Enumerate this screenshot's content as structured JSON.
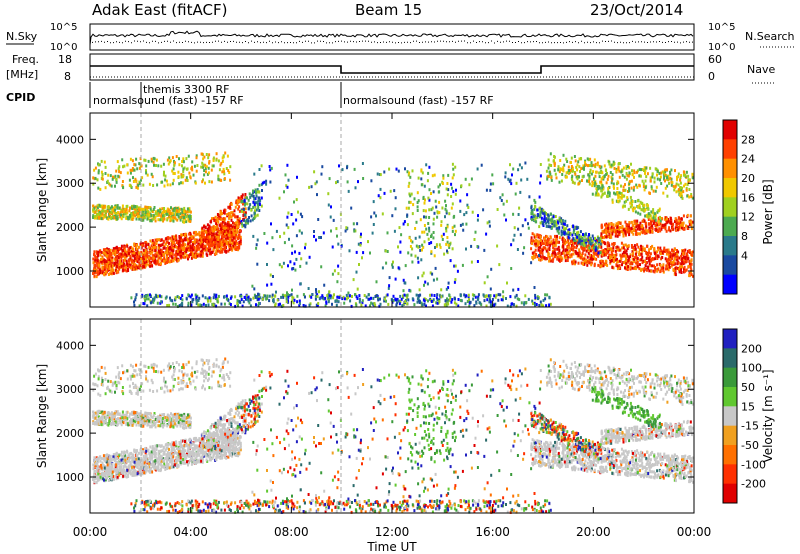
{
  "header": {
    "station": "Adak East (fitACF)",
    "beam": "Beam 15",
    "date": "23/Oct/2014"
  },
  "top_panels": {
    "nsky_label": "N.Sky",
    "nsearch_label": "N.Search",
    "nsky_ticks": [
      "10^5",
      "10^0"
    ],
    "nsearch_ticks": [
      "10^5",
      "10^0"
    ],
    "freq_label": "Freq.",
    "freq_unit": "[MHz]",
    "freq_ticks": [
      "18",
      "8"
    ],
    "nave_label": "Nave",
    "nave_ticks": [
      "60",
      "0"
    ],
    "cpid_label": "CPID",
    "cpid_segments": [
      {
        "text": "normalsound (fast) -157 RF",
        "start": "00:00",
        "end": "10:00"
      },
      {
        "text": "themis 3300 RF",
        "start": "02:00",
        "end": "02:00"
      },
      {
        "text": "normalsound (fast) -157 RF",
        "start": "10:00",
        "end": "24:00"
      }
    ]
  },
  "chart_data": [
    {
      "type": "heatmap",
      "title": "",
      "ylabel": "Slant Range [km]",
      "xlabel": "",
      "ylim": [
        180,
        4600
      ],
      "yticks": [
        "1000",
        "2000",
        "3000",
        "4000"
      ],
      "xticks": [
        "00:00",
        "04:00",
        "08:00",
        "12:00",
        "16:00",
        "20:00",
        "00:00"
      ],
      "colorbar": {
        "label": "Power [dB]",
        "ticks": [
          "28",
          "24",
          "20",
          "16",
          "12",
          "8",
          "4"
        ],
        "colors": [
          "#e00000",
          "#ff4000",
          "#ff9000",
          "#f0c800",
          "#a0d020",
          "#4caa50",
          "#2a7a8a",
          "#1a4aa0",
          "#0000ff"
        ]
      }
    },
    {
      "type": "heatmap",
      "title": "",
      "ylabel": "Slant Range [km]",
      "xlabel": "Time UT",
      "ylim": [
        180,
        4600
      ],
      "yticks": [
        "1000",
        "2000",
        "3000",
        "4000"
      ],
      "xticks": [
        "00:00",
        "04:00",
        "08:00",
        "12:00",
        "16:00",
        "20:00",
        "00:00"
      ],
      "colorbar": {
        "label": "Velocity [m s⁻¹]",
        "ticks": [
          "200",
          "100",
          "50",
          "15",
          "-15",
          "-50",
          "-100",
          "-200"
        ],
        "colors": [
          "#2020c0",
          "#2a6a6a",
          "#3a9a3a",
          "#60c830",
          "#c8c8c8",
          "#f0a020",
          "#ff7000",
          "#ff3000",
          "#e00000"
        ]
      }
    }
  ]
}
